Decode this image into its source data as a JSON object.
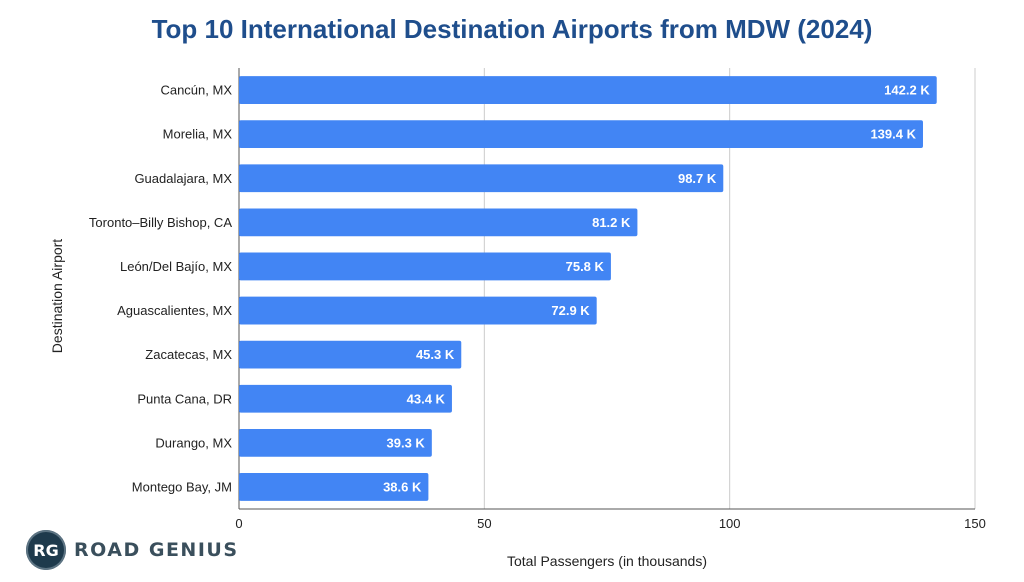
{
  "brand": {
    "badge": "RG",
    "name": "ROAD GENIUS"
  },
  "chart_data": {
    "type": "bar",
    "orientation": "horizontal",
    "title": "Top 10 International Destination Airports from MDW (2024)",
    "xlabel": "Total Passengers (in thousands)",
    "ylabel": "Destination Airport",
    "xlim": [
      0,
      150
    ],
    "xticks": [
      0,
      50,
      100,
      150
    ],
    "grid": true,
    "bar_color": "#4285f4",
    "title_color": "#1f4e8c",
    "categories": [
      "Cancún, MX",
      "Morelia, MX",
      "Guadalajara, MX",
      "Toronto–Billy Bishop, CA",
      "León/Del Bajío, MX",
      "Aguascalientes, MX",
      "Zacatecas, MX",
      "Punta Cana, DR",
      "Durango, MX",
      "Montego Bay, JM"
    ],
    "values": [
      142.2,
      139.4,
      98.7,
      81.2,
      75.8,
      72.9,
      45.3,
      43.4,
      39.3,
      38.6
    ],
    "data_labels": [
      "142.2 K",
      "139.4 K",
      "98.7 K",
      "81.2 K",
      "75.8 K",
      "72.9 K",
      "45.3 K",
      "43.4 K",
      "39.3 K",
      "38.6 K"
    ]
  }
}
